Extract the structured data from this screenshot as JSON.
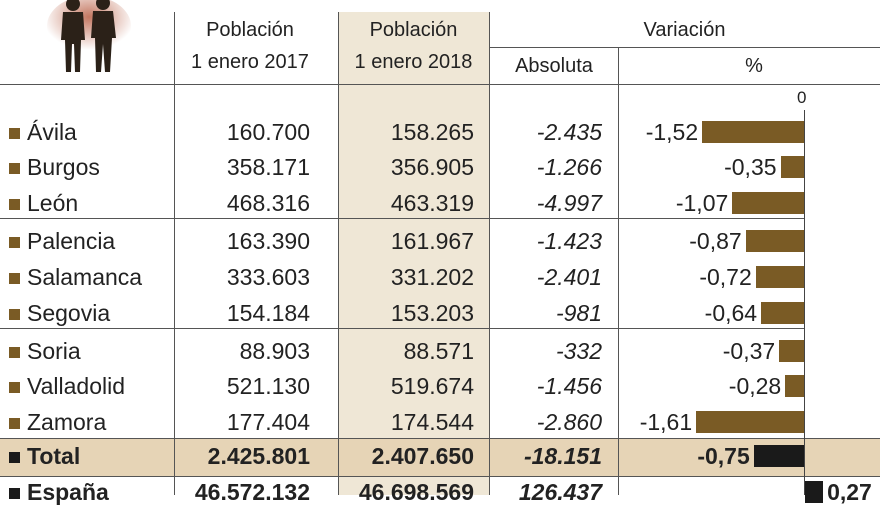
{
  "colors": {
    "bar": "#7a5b25",
    "total_bar": "#1a1a1a",
    "highlight_col": "#efe7d6",
    "total_row": "#e6d4b6",
    "marker": "#7a5b25"
  },
  "header": {
    "col2017_line1": "Población",
    "col2017_line2": "1 enero 2017",
    "col2018_line1": "Población",
    "col2018_line2": "1 enero 2018",
    "variacion": "Variación",
    "absoluta": "Absoluta",
    "percent": "%",
    "zero": "0"
  },
  "chart_data": {
    "type": "table",
    "columns": [
      "Población 1 enero 2017",
      "Población 1 enero 2018",
      "Variación Absoluta",
      "Variación %"
    ],
    "rows": [
      {
        "name": "Ávila",
        "p2017": "160.700",
        "p2018": "158.265",
        "abs": "-2.435",
        "pct_label": "-1,52",
        "pct": -1.52
      },
      {
        "name": "Burgos",
        "p2017": "358.171",
        "p2018": "356.905",
        "abs": "-1.266",
        "pct_label": "-0,35",
        "pct": -0.35
      },
      {
        "name": "León",
        "p2017": "468.316",
        "p2018": "463.319",
        "abs": "-4.997",
        "pct_label": "-1,07",
        "pct": -1.07
      },
      {
        "name": "Palencia",
        "p2017": "163.390",
        "p2018": "161.967",
        "abs": "-1.423",
        "pct_label": "-0,87",
        "pct": -0.87
      },
      {
        "name": "Salamanca",
        "p2017": "333.603",
        "p2018": "331.202",
        "abs": "-2.401",
        "pct_label": "-0,72",
        "pct": -0.72
      },
      {
        "name": "Segovia",
        "p2017": "154.184",
        "p2018": "153.203",
        "abs": "-981",
        "pct_label": "-0,64",
        "pct": -0.64
      },
      {
        "name": "Soria",
        "p2017": "88.903",
        "p2018": "88.571",
        "abs": "-332",
        "pct_label": "-0,37",
        "pct": -0.37
      },
      {
        "name": "Valladolid",
        "p2017": "521.130",
        "p2018": "519.674",
        "abs": "-1.456",
        "pct_label": "-0,28",
        "pct": -0.28
      },
      {
        "name": "Zamora",
        "p2017": "177.404",
        "p2018": "174.544",
        "abs": "-2.860",
        "pct_label": "-1,61",
        "pct": -1.61
      }
    ],
    "total": {
      "name": "Total",
      "p2017": "2.425.801",
      "p2018": "2.407.650",
      "abs": "-18.151",
      "pct_label": "-0,75",
      "pct": -0.75
    },
    "espana": {
      "name": "España",
      "p2017": "46.572.132",
      "p2018": "46.698.569",
      "abs": "126.437",
      "pct_label": "0,27",
      "pct": 0.27
    }
  }
}
